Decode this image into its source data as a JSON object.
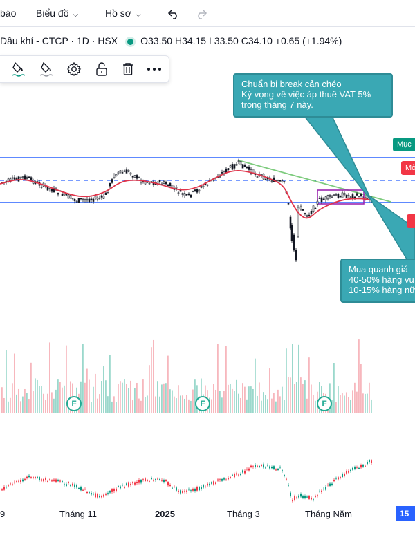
{
  "topbar": {
    "partial_left": "báo",
    "chart_menu": "Biểu đồ",
    "profile_menu": "Hồ sơ"
  },
  "legend": {
    "symbol": "Dầu khí - CTCP · 1D · HSX",
    "open": "O33.50",
    "high": "H34.15",
    "low": "L33.50",
    "close": "C34.10",
    "change": "+0.65 (+1.94%)",
    "status_color": "#089981"
  },
  "toolbar": {
    "tools": [
      "paint-bucket-icon",
      "brush-icon",
      "gear-icon",
      "unlock-icon",
      "trash-icon",
      "more-icon"
    ]
  },
  "callouts": {
    "top_lines": [
      "Chuẩn bị break cản chéo",
      "Kỳ vọng về việc áp thuế VAT 5%",
      "trong tháng 7 này."
    ],
    "bottom_lines": [
      "Mua quanh giá",
      "40-50% hàng vu",
      "10-15% hàng nữ"
    ]
  },
  "price_tags": {
    "green": "Mục",
    "red": "Mở",
    "red2": ""
  },
  "earnings_markers": [
    "F",
    "F",
    "F"
  ],
  "x_axis": {
    "labels": [
      "9",
      "Tháng 11",
      "2025",
      "Tháng 3",
      "Tháng Năm"
    ],
    "right_box": "15"
  },
  "colors": {
    "up": "#089981",
    "down": "#f23645",
    "ma": "#e0344a",
    "support": "#2962ff",
    "trendline": "#7dcb7d",
    "box": "#9c27b0",
    "callout": "#3aa8b4"
  }
}
